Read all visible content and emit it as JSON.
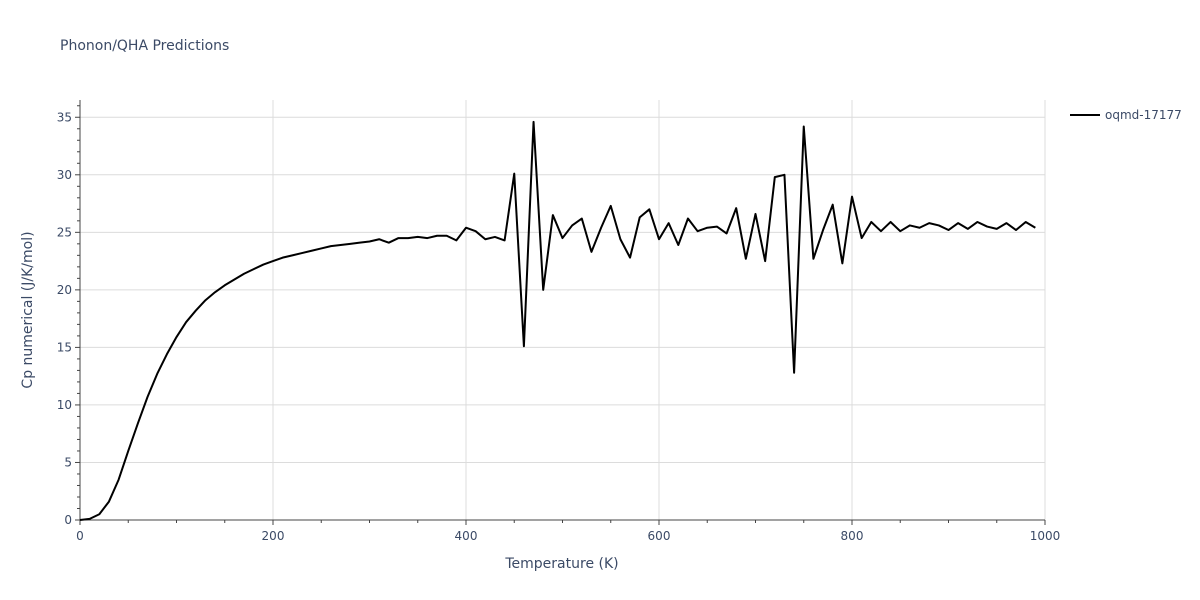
{
  "chart_data": {
    "type": "line",
    "title": "Phonon/QHA Predictions",
    "xlabel": "Temperature (K)",
    "ylabel": "Cp numerical (J/K/mol)",
    "xlim": [
      0,
      1000
    ],
    "ylim": [
      0,
      36.5
    ],
    "xticks": [
      0,
      200,
      400,
      600,
      800,
      1000
    ],
    "yticks": [
      0,
      5,
      10,
      15,
      20,
      25,
      30,
      35
    ],
    "grid": true,
    "legend_position": "top-right",
    "colors": {
      "line": "#000000",
      "grid": "#dcdcdc",
      "text": "#3b4a66",
      "axis": "#444444"
    },
    "series": [
      {
        "name": "oqmd-17177",
        "x": [
          0,
          10,
          20,
          30,
          40,
          50,
          60,
          70,
          80,
          90,
          100,
          110,
          120,
          130,
          140,
          150,
          160,
          170,
          180,
          190,
          200,
          210,
          220,
          230,
          240,
          250,
          260,
          270,
          280,
          290,
          300,
          310,
          320,
          330,
          340,
          350,
          360,
          370,
          380,
          390,
          400,
          410,
          420,
          430,
          440,
          450,
          460,
          470,
          480,
          490,
          500,
          510,
          520,
          530,
          540,
          550,
          560,
          570,
          580,
          590,
          600,
          610,
          620,
          630,
          640,
          650,
          660,
          670,
          680,
          690,
          700,
          710,
          720,
          730,
          740,
          750,
          760,
          770,
          780,
          790,
          800,
          810,
          820,
          830,
          840,
          850,
          860,
          870,
          880,
          890,
          900,
          910,
          920,
          930,
          940,
          950,
          960,
          970,
          980,
          990
        ],
        "y": [
          0,
          0.1,
          0.5,
          1.6,
          3.5,
          6.0,
          8.4,
          10.7,
          12.7,
          14.4,
          15.9,
          17.2,
          18.2,
          19.1,
          19.8,
          20.4,
          20.9,
          21.4,
          21.8,
          22.2,
          22.5,
          22.8,
          23.0,
          23.2,
          23.4,
          23.6,
          23.8,
          23.9,
          24.0,
          24.1,
          24.2,
          24.4,
          24.1,
          24.5,
          24.5,
          24.6,
          24.5,
          24.7,
          24.7,
          24.3,
          25.4,
          25.1,
          24.4,
          24.6,
          24.3,
          30.1,
          15.1,
          34.6,
          20.0,
          26.5,
          24.5,
          25.6,
          26.2,
          23.3,
          25.4,
          27.3,
          24.4,
          22.8,
          26.3,
          27.0,
          24.4,
          25.8,
          23.9,
          26.2,
          25.1,
          25.4,
          25.5,
          24.9,
          27.1,
          22.7,
          26.6,
          22.5,
          29.8,
          30.0,
          12.8,
          34.2,
          22.7,
          25.2,
          27.4,
          22.3,
          28.1,
          24.5,
          25.9,
          25.1,
          25.9,
          25.1,
          25.6,
          25.4,
          25.8,
          25.6,
          25.2,
          25.8,
          25.3,
          25.9,
          25.5,
          25.3,
          25.8,
          25.2,
          25.9,
          25.4
        ]
      }
    ]
  }
}
